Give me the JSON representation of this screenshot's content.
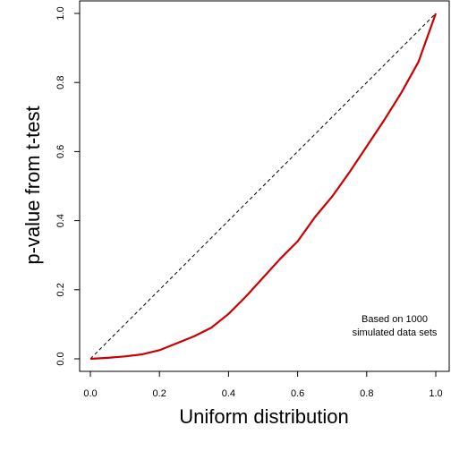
{
  "chart_data": {
    "type": "line",
    "title": "",
    "xlabel": "Uniform distribution",
    "ylabel": "p-value from t-test",
    "xlim": [
      0,
      1
    ],
    "ylim": [
      0,
      1
    ],
    "x_ticks": [
      "0.0",
      "0.2",
      "0.4",
      "0.6",
      "0.8",
      "1.0"
    ],
    "y_ticks": [
      "0.0",
      "0.2",
      "0.4",
      "0.6",
      "0.8",
      "1.0"
    ],
    "annotation_lines": [
      "Based on 1000",
      "simulated data sets"
    ],
    "reference_line": {
      "style": "dashed",
      "color": "#000000",
      "x": [
        0,
        1
      ],
      "y": [
        0,
        1
      ]
    },
    "series": [
      {
        "color": "#cc0000",
        "x": [
          0.0,
          0.05,
          0.1,
          0.15,
          0.2,
          0.25,
          0.3,
          0.35,
          0.4,
          0.45,
          0.5,
          0.55,
          0.6,
          0.65,
          0.7,
          0.75,
          0.8,
          0.85,
          0.9,
          0.95,
          1.0
        ],
        "y": [
          0.0,
          0.003,
          0.007,
          0.013,
          0.025,
          0.045,
          0.065,
          0.09,
          0.13,
          0.18,
          0.235,
          0.29,
          0.34,
          0.41,
          0.47,
          0.54,
          0.615,
          0.69,
          0.77,
          0.86,
          1.0
        ]
      }
    ],
    "grid": false,
    "legend": "none"
  }
}
